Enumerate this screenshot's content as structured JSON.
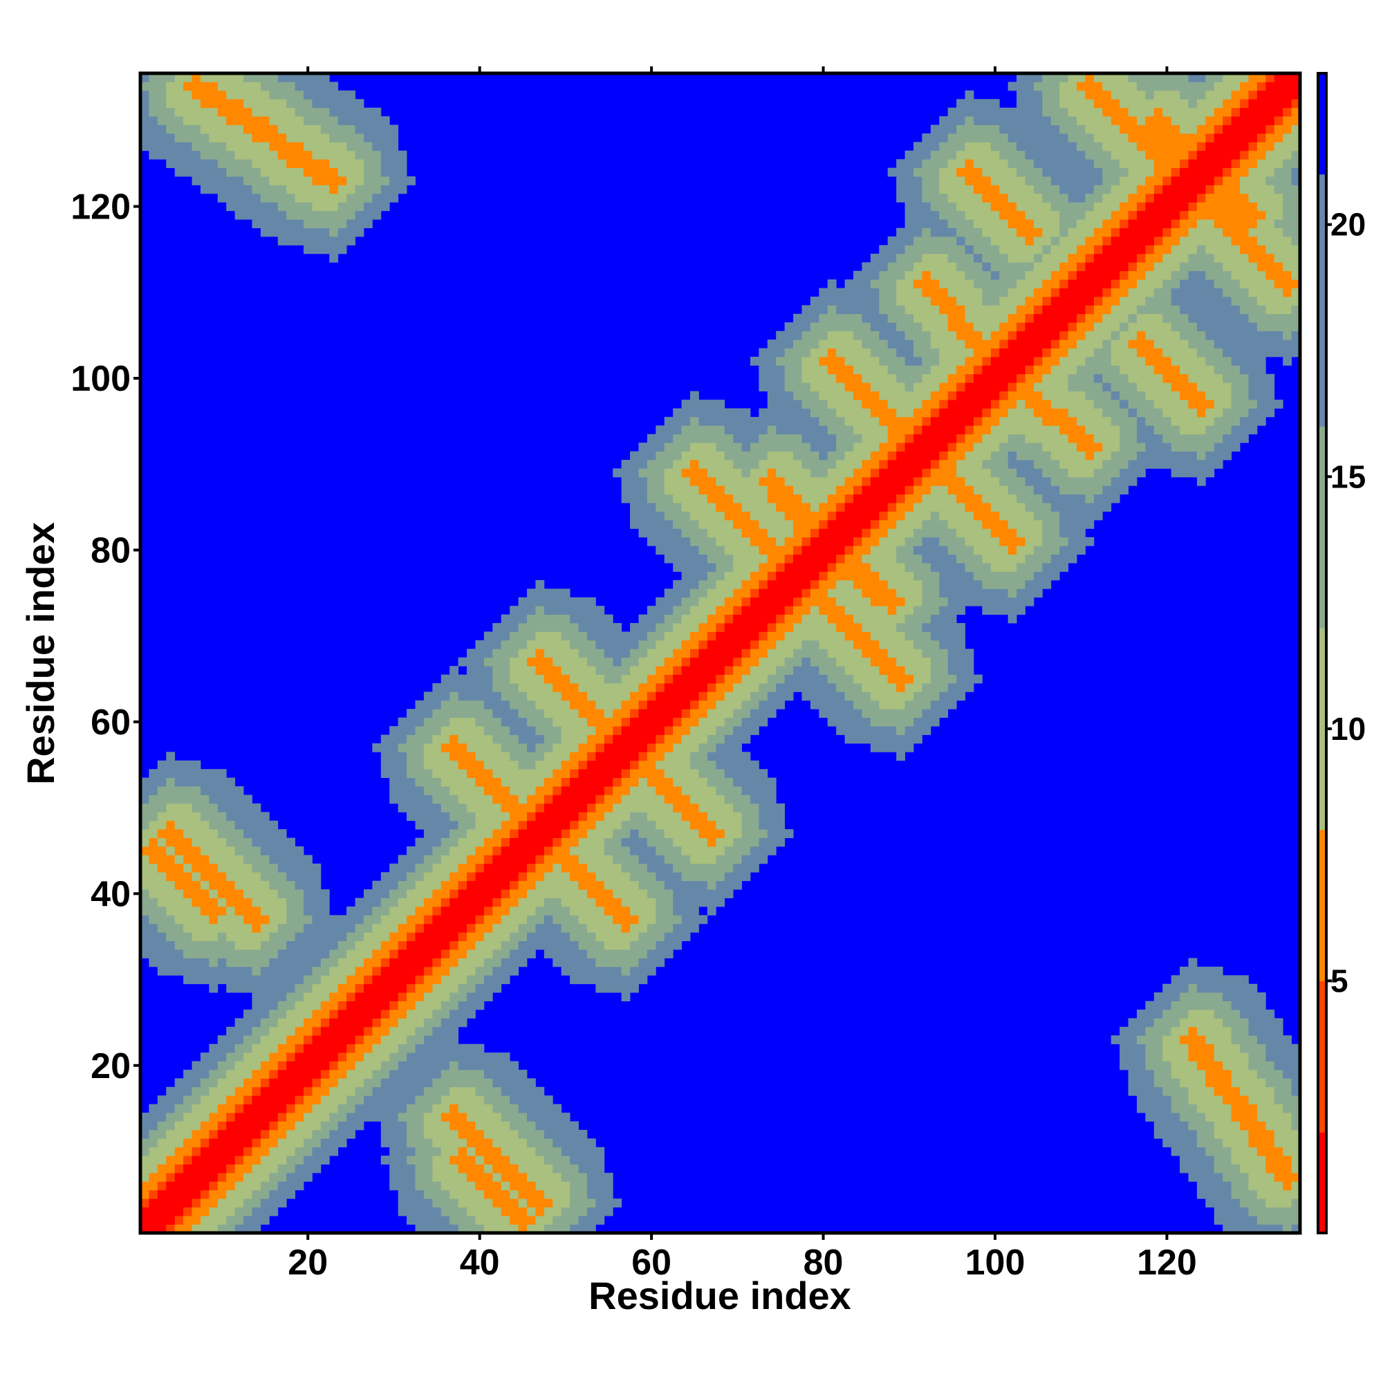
{
  "chart_data": {
    "type": "heatmap",
    "title": "",
    "xlabel": "Residue index",
    "ylabel": "Residue index",
    "n_residues": 135,
    "xlim": [
      0.5,
      135.5
    ],
    "ylim": [
      0.5,
      135.5
    ],
    "x_ticks": [
      20,
      40,
      60,
      80,
      100,
      120
    ],
    "y_ticks": [
      20,
      40,
      60,
      80,
      100,
      120
    ],
    "colorbar": {
      "ticks": [
        5,
        10,
        15,
        20
      ],
      "range": [
        0,
        23
      ],
      "bands": [
        {
          "from": 0,
          "to": 2,
          "color": "#ff0000"
        },
        {
          "from": 2,
          "to": 5,
          "color": "#ff4400"
        },
        {
          "from": 5,
          "to": 8,
          "color": "#ff8800"
        },
        {
          "from": 8,
          "to": 12,
          "color": "#a9c07f"
        },
        {
          "from": 12,
          "to": 16,
          "color": "#8aaa90"
        },
        {
          "from": 16,
          "to": 21,
          "color": "#6688a8"
        },
        {
          "from": 21,
          "to": 23,
          "color": "#0000ff"
        }
      ]
    },
    "colors": {
      "contact": "#ff0000",
      "close": "#ff8800",
      "medium": "#a9c07f",
      "far": "#6d8fa8",
      "none": "#0000ff"
    },
    "contact_features": [
      {
        "kind": "diagonal",
        "from": 1,
        "to": 135,
        "value": 1
      },
      {
        "kind": "helix-band",
        "from": 14,
        "to": 38,
        "value": 6
      },
      {
        "kind": "antiparallel",
        "i": [
          4,
          14
        ],
        "j": [
          47,
          37
        ],
        "value": 6
      },
      {
        "kind": "antiparallel",
        "i": [
          37,
          46
        ],
        "j": [
          57,
          48
        ],
        "value": 6
      },
      {
        "kind": "antiparallel",
        "i": [
          47,
          56
        ],
        "j": [
          67,
          58
        ],
        "value": 6
      },
      {
        "kind": "antiparallel",
        "i": [
          65,
          74
        ],
        "j": [
          89,
          80
        ],
        "value": 6
      },
      {
        "kind": "antiparallel",
        "i": [
          74,
          86
        ],
        "j": [
          88,
          75
        ],
        "value": 6
      },
      {
        "kind": "antiparallel",
        "i": [
          81,
          89
        ],
        "j": [
          102,
          94
        ],
        "value": 6
      },
      {
        "kind": "antiparallel",
        "i": [
          92,
          98
        ],
        "j": [
          111,
          104
        ],
        "value": 6
      },
      {
        "kind": "antiparallel",
        "i": [
          97,
          104
        ],
        "j": [
          124,
          117
        ],
        "value": 6
      },
      {
        "kind": "antiparallel",
        "i": [
          111,
          122
        ],
        "j": [
          134,
          123
        ],
        "value": 6
      },
      {
        "kind": "antiparallel",
        "i": [
          119,
          129
        ],
        "j": [
          130,
          118
        ],
        "value": 6
      },
      {
        "kind": "antiparallel",
        "i": [
          7,
          23
        ],
        "j": [
          134,
          123
        ],
        "value": 6
      },
      {
        "kind": "antiparallel",
        "i": [
          38,
          45
        ],
        "j": [
          9,
          2
        ],
        "value": 6
      }
    ]
  }
}
